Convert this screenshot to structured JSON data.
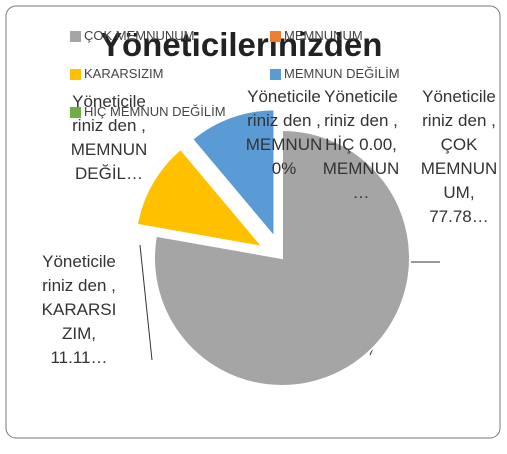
{
  "chart_data": {
    "type": "pie",
    "title": "Yöneticilerinizden",
    "categories": [
      "ÇOK MEMNUNUM",
      "MEMNUNUM",
      "KARARSIZIM",
      "MEMNUN DEĞİLİM",
      "HİÇ MEMNUN DEĞİLİM"
    ],
    "values": [
      77.78,
      0,
      11.11,
      11.11,
      0
    ],
    "value_labels": [
      "Yöneticileriniz den , ÇOK MEMNUNUM, 77.78…",
      "Yöneticileriniz den , MEMNUN 0%",
      "Yöneticileriniz den , KARARSIZIM, 11.11…",
      "Yöneticileriniz den , MEMNUN DEĞİL…",
      "Yöneticileriniz den , HİÇ 0.00, MEMNUN…"
    ],
    "colors": [
      "#a5a5a5",
      "#ed7d31",
      "#ffc000",
      "#5b9bd5",
      "#70ad47"
    ],
    "legend": "top"
  }
}
